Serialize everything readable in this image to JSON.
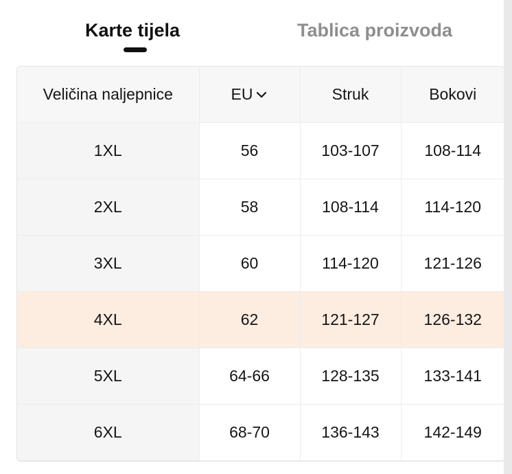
{
  "tabs": {
    "active_label": "Karte tijela",
    "inactive_label": "Tablica proizvoda"
  },
  "table": {
    "headers": {
      "label_size": "Veličina naljepnice",
      "eu": "EU",
      "waist": "Struk",
      "hips": "Bokovi"
    },
    "highlight_color": "#fdece0",
    "rows": [
      {
        "size": "1XL",
        "eu": "56",
        "waist": "103-107",
        "hips": "108-114"
      },
      {
        "size": "2XL",
        "eu": "58",
        "waist": "108-114",
        "hips": "114-120"
      },
      {
        "size": "3XL",
        "eu": "60",
        "waist": "114-120",
        "hips": "121-126"
      },
      {
        "size": "4XL",
        "eu": "62",
        "waist": "121-127",
        "hips": "126-132",
        "highlighted": true
      },
      {
        "size": "5XL",
        "eu": "64-66",
        "waist": "128-135",
        "hips": "133-141"
      },
      {
        "size": "6XL",
        "eu": "68-70",
        "waist": "136-143",
        "hips": "142-149"
      }
    ]
  },
  "icons": {
    "eu_sort": "chevron-down-icon"
  }
}
